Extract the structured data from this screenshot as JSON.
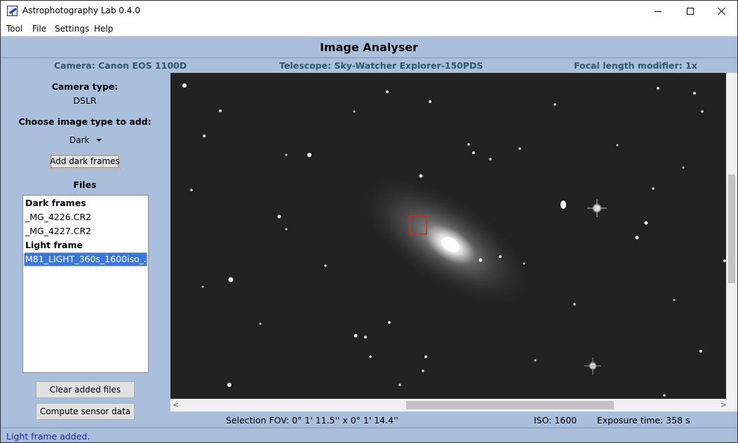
{
  "window": {
    "title": "Astrophotography Lab 0.4.0"
  },
  "menu": {
    "items": [
      "Tool",
      "File",
      "Settings",
      "Help"
    ]
  },
  "header": {
    "title": "Image Analyser",
    "camera": "Camera: Canon EOS 1100D",
    "telescope": "Telescope: Sky-Watcher Explorer-150PDS",
    "focal_modifier": "Focal length modifier: 1x"
  },
  "left_panel": {
    "camera_type_label": "Camera type:",
    "camera_type_value": "DSLR",
    "choose_type_label": "Choose image type to add:",
    "image_type_selected": "Dark",
    "add_button_label": "Add dark frames",
    "files_label": "Files",
    "files": [
      {
        "text": "Dark frames",
        "kind": "header"
      },
      {
        "text": "_MG_4226.CR2",
        "kind": "file"
      },
      {
        "text": "_MG_4227.CR2",
        "kind": "file"
      },
      {
        "text": "Light frame",
        "kind": "header"
      },
      {
        "text": "M81_LIGHT_360s_1600iso_..",
        "kind": "selected"
      }
    ],
    "clear_button_label": "Clear added files",
    "compute_button_label": "Compute sensor data"
  },
  "image_info": {
    "selection_fov": "Selection FOV: 0° 1' 11.5'' x 0° 1' 14.4''",
    "iso": "ISO: 1600",
    "exposure": "Exposure time: 358 s"
  },
  "status_bar": {
    "message": "Light frame added."
  },
  "colors": {
    "background": "#a9bfdc",
    "info_text": "#30566d",
    "selection_box": "#e02020",
    "selected_row": "#3b78d7"
  }
}
